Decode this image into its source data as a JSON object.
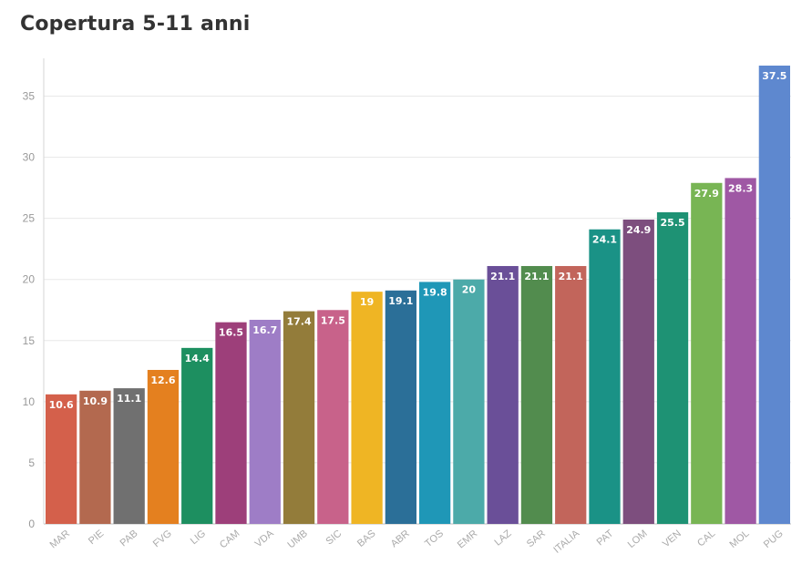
{
  "chart_data": {
    "type": "bar",
    "title": "Copertura 5-11 anni",
    "xlabel": "",
    "ylabel": "",
    "ylim": [
      0,
      37.5
    ],
    "yticks": [
      0,
      5,
      10,
      15,
      20,
      25,
      30,
      35
    ],
    "grid": true,
    "categories": [
      "MAR",
      "PIE",
      "PAB",
      "FVG",
      "LIG",
      "CAM",
      "VDA",
      "UMB",
      "SIC",
      "BAS",
      "ABR",
      "TOS",
      "EMR",
      "LAZ",
      "SAR",
      "ITALIA",
      "PAT",
      "LOM",
      "VEN",
      "CAL",
      "MOL",
      "PUG"
    ],
    "values": [
      10.6,
      10.9,
      11.1,
      12.6,
      14.4,
      16.5,
      16.7,
      17.4,
      17.5,
      19,
      19.1,
      19.8,
      20,
      21.1,
      21.1,
      21.1,
      24.1,
      24.9,
      25.5,
      27.9,
      28.3,
      37.5
    ],
    "colors": [
      "#d4604b",
      "#b3694f",
      "#707070",
      "#e4801f",
      "#1d8f60",
      "#9d3f7a",
      "#9e7dc6",
      "#937c3a",
      "#c8628a",
      "#efb524",
      "#2b6f98",
      "#1f97b7",
      "#4caaa9",
      "#6a4f98",
      "#528c4e",
      "#c2655b",
      "#1a9286",
      "#7d4e7e",
      "#1e9274",
      "#78b554",
      "#9f58a4",
      "#5e88cf"
    ]
  }
}
